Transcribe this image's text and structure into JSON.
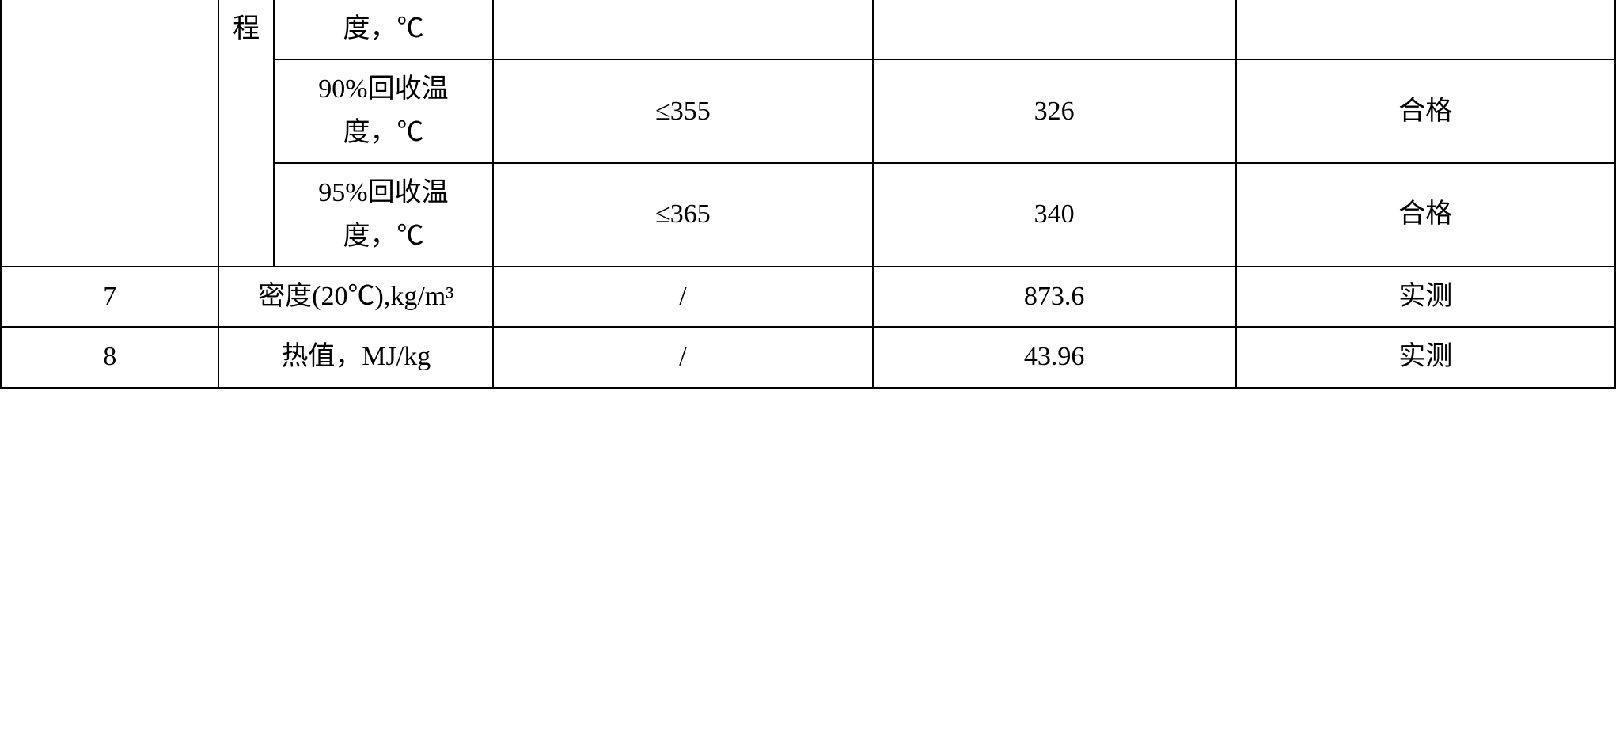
{
  "row1": {
    "colB": "程",
    "colC": "度，℃",
    "colD": "",
    "colE": "",
    "colF": ""
  },
  "row2": {
    "colC": "90%回收温\n度，℃",
    "colD": "≤355",
    "colE": "326",
    "colF": "合格"
  },
  "row3": {
    "colC": "95%回收温\n度，℃",
    "colD": "≤365",
    "colE": "340",
    "colF": "合格"
  },
  "row4": {
    "colA": "7",
    "colBC": "密度(20℃),kg/m³",
    "colD": "/",
    "colE": "873.6",
    "colF": "实测"
  },
  "row5": {
    "colA": "8",
    "colBC": "热值，MJ/kg",
    "colD": "/",
    "colE": "43.96",
    "colF": "实测"
  }
}
